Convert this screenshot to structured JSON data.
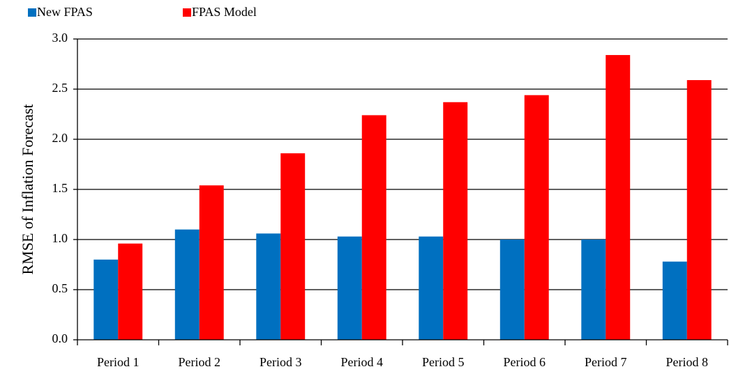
{
  "chart_data": {
    "type": "bar",
    "y_label": "RMSE of Inflation Forecast",
    "categories": [
      "Period 1",
      "Period 2",
      "Period 3",
      "Period 4",
      "Period 5",
      "Period 6",
      "Period 7",
      "Period 8"
    ],
    "series": [
      {
        "name": "New FPAS",
        "color": "#0070c0",
        "values": [
          0.8,
          1.1,
          1.06,
          1.03,
          1.03,
          1.0,
          1.0,
          0.78
        ]
      },
      {
        "name": "FPAS Model",
        "color": "#ff0000",
        "values": [
          0.96,
          1.54,
          1.86,
          2.24,
          2.37,
          2.44,
          2.84,
          2.59
        ]
      }
    ],
    "ylim": [
      0,
      3.0
    ],
    "yticks": [
      {
        "value": 0,
        "label": "0.0"
      },
      0.5,
      {
        "value": 1,
        "label": "1.0"
      },
      1.5,
      {
        "value": 2,
        "label": "2.0"
      },
      2.5,
      {
        "value": 3,
        "label": "3.0"
      }
    ],
    "grid": true,
    "legend": "top-left"
  }
}
